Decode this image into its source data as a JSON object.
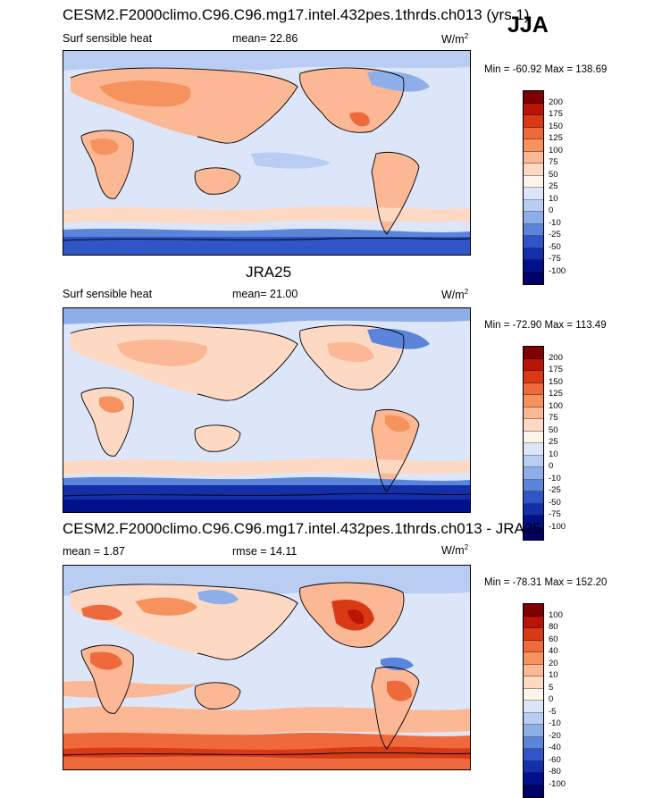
{
  "season": "JJA",
  "panels": [
    {
      "title": "CESM2.F2000climo.C96.C96.mg17.intel.432pes.1thrds.ch013 (yrs 1)",
      "left_label": "Surf sensible heat",
      "mid_label": "mean=  22.86",
      "units_base": "W/m",
      "units_sup": "2",
      "stats": "Min = -60.92 Max = 138.69",
      "colorbar_levels": [
        "200",
        "175",
        "150",
        "125",
        "100",
        "75",
        "50",
        "25",
        "10",
        "0",
        "-10",
        "-25",
        "-50",
        "-75",
        "-100"
      ]
    },
    {
      "title": "JRA25",
      "left_label": "Surf sensible heat",
      "mid_label": "mean=  21.00",
      "units_base": "W/m",
      "units_sup": "2",
      "stats": "Min = -72.90 Max = 113.49",
      "colorbar_levels": [
        "200",
        "175",
        "150",
        "125",
        "100",
        "75",
        "50",
        "25",
        "10",
        "0",
        "-10",
        "-25",
        "-50",
        "-75",
        "-100"
      ]
    },
    {
      "title": "CESM2.F2000climo.C96.C96.mg17.intel.432pes.1thrds.ch013 - JRA25",
      "left_label": "mean =   1.87",
      "mid_label": "rmse =  14.11",
      "units_base": "W/m",
      "units_sup": "2",
      "stats": "Min = -78.31 Max = 152.20",
      "colorbar_levels": [
        "100",
        "80",
        "60",
        "40",
        "20",
        "10",
        "5",
        "0",
        "-5",
        "-10",
        "-20",
        "-40",
        "-60",
        "-80",
        "-100"
      ]
    }
  ],
  "colorbar_colors": [
    "#7f0000",
    "#b81504",
    "#d93a16",
    "#ee6a3c",
    "#f6925e",
    "#fcb894",
    "#fdd9c4",
    "#fff4ea",
    "#dce6f8",
    "#b9cdf2",
    "#8daee9",
    "#5b84db",
    "#2f55c6",
    "#1430a8",
    "#00108a",
    "#000067"
  ]
}
